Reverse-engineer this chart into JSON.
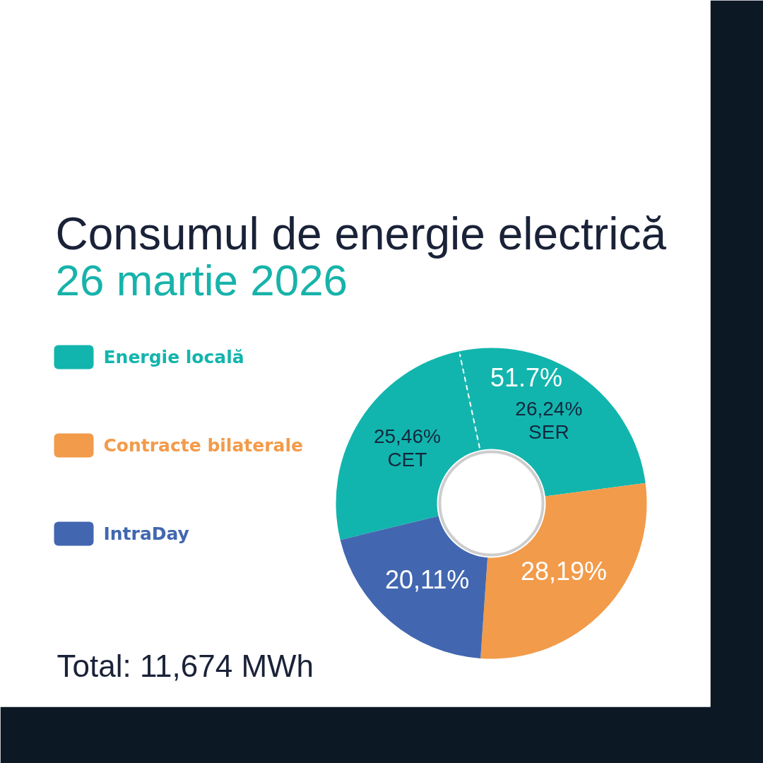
{
  "chart_data": {
    "type": "donut",
    "title": "Consumul de energie electrică",
    "subtitle": "26 martie 2026",
    "categories": [
      "CET",
      "SER",
      "Contracte bilaterale",
      "IntraDay"
    ],
    "values": [
      25.46,
      26.24,
      28.19,
      20.11
    ],
    "colors": [
      "#12b5ad",
      "#12b5ad",
      "#f29b4a",
      "#4267b0"
    ],
    "value_labels": [
      "25,46%",
      "26,24%",
      "28,19%",
      "20,11%"
    ],
    "legend": "left",
    "annotations": [
      "Energie locală",
      "51.7%",
      "Total: 11,674 MWh"
    ]
  }
}
